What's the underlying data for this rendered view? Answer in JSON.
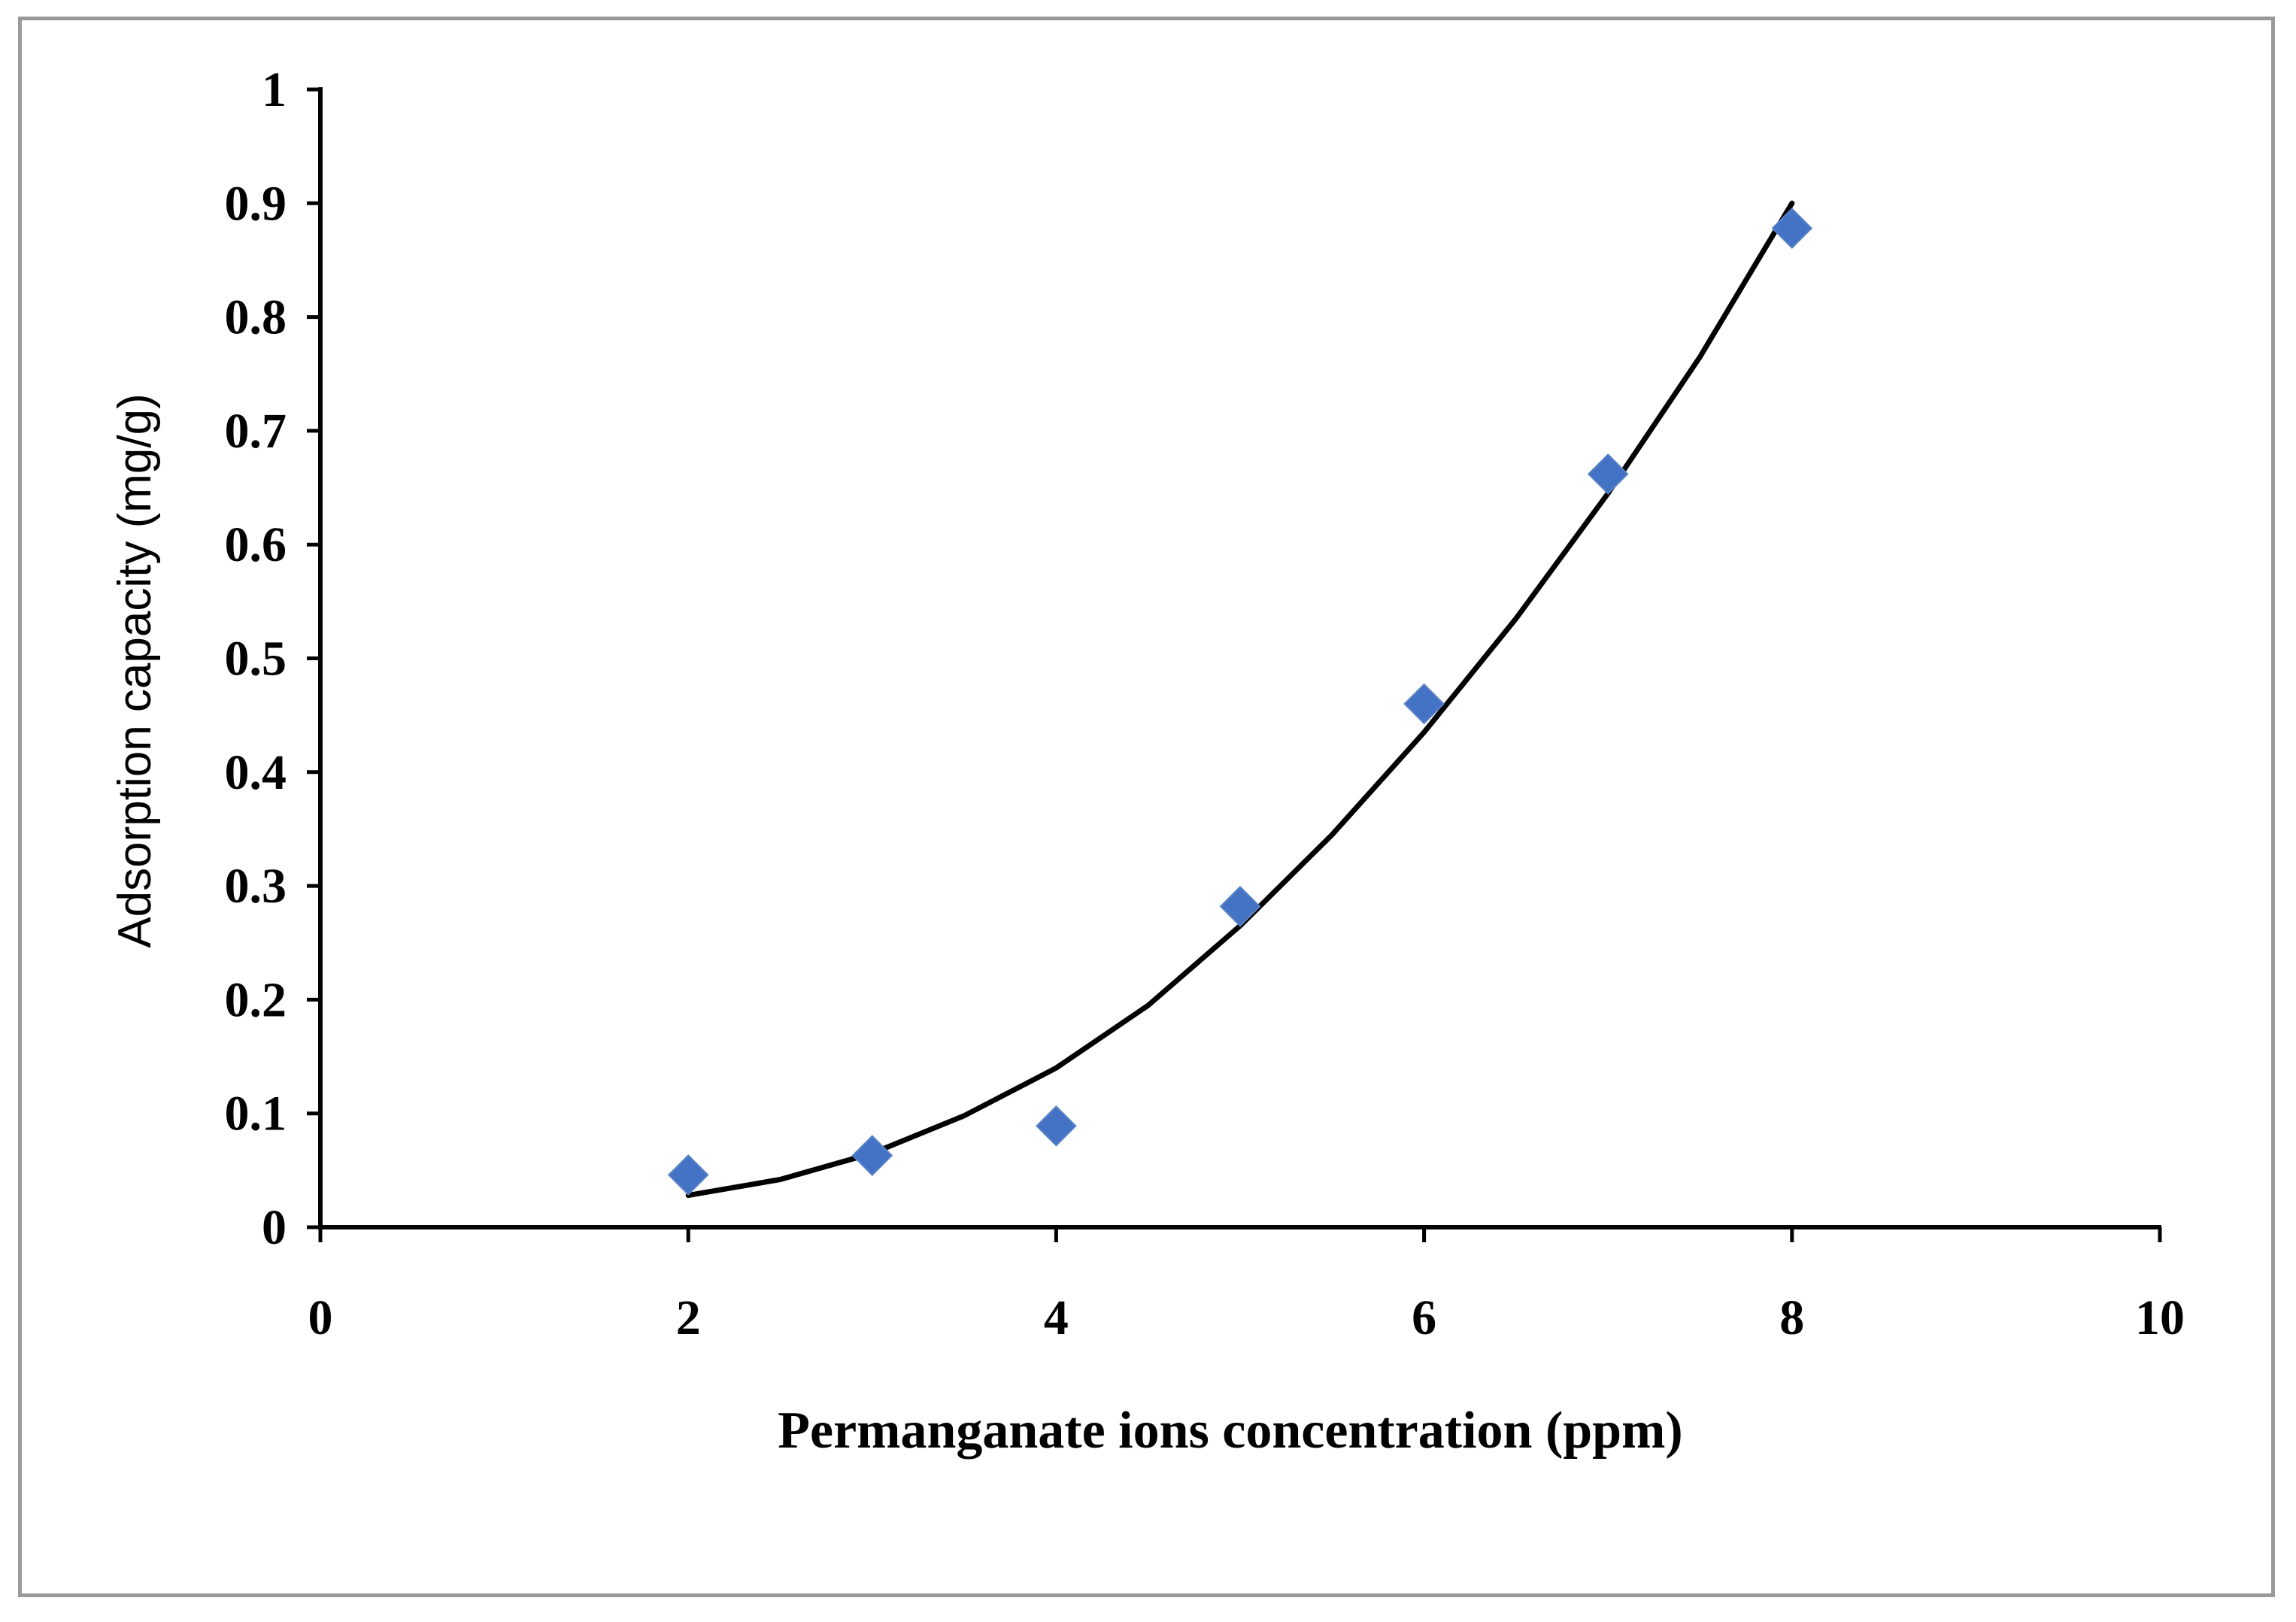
{
  "chart_data": {
    "type": "scatter",
    "title": "",
    "xlabel": "Permanganate ions concentration (ppm)",
    "ylabel": "Adsorption capacity  (mg/g)",
    "xlim": [
      0,
      10
    ],
    "ylim": [
      0,
      1
    ],
    "x_ticks": [
      "0",
      "2",
      "4",
      "6",
      "8",
      "10"
    ],
    "y_ticks": [
      "0",
      "0.1",
      "0.2",
      "0.3",
      "0.4",
      "0.5",
      "0.6",
      "0.7",
      "0.8",
      "0.9",
      "1"
    ],
    "grid": false,
    "legend": "none",
    "series": [
      {
        "marker": "diamond",
        "color": "#4472C4",
        "x": [
          2,
          3,
          4,
          5,
          6,
          7,
          8
        ],
        "y": [
          0.046,
          0.063,
          0.089,
          0.282,
          0.46,
          0.662,
          0.878
        ]
      }
    ],
    "trendline": {
      "type": "polynomial",
      "color": "#000000",
      "x": [
        2,
        2.5,
        3,
        3.5,
        4,
        4.5,
        5,
        5.5,
        6,
        6.5,
        7,
        7.5,
        8
      ],
      "y": [
        0.028,
        0.042,
        0.065,
        0.098,
        0.14,
        0.195,
        0.265,
        0.345,
        0.435,
        0.535,
        0.645,
        0.765,
        0.9
      ]
    }
  }
}
